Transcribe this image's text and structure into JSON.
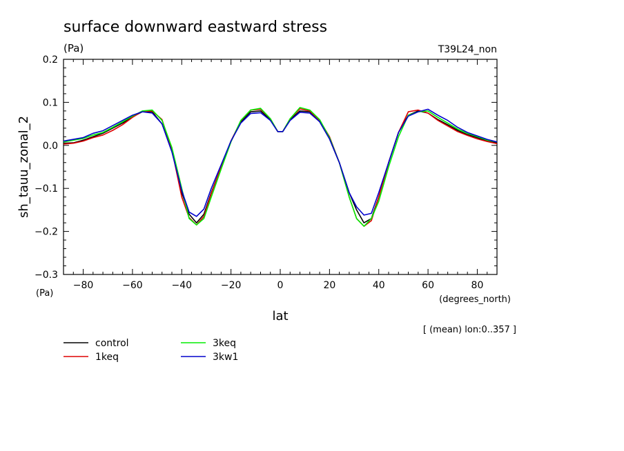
{
  "chart_data": {
    "type": "line",
    "title": "surface downward eastward stress",
    "yunit_top": "(Pa)",
    "yunit_bottom": "(Pa)",
    "top_right_label": "T39L24_non",
    "ylabel": "sh_tauu_zonal_2",
    "xlabel": "lat",
    "xunit": "(degrees_north)",
    "note": "[ (mean) lon:0..357 ]",
    "xlim": [
      -88,
      88
    ],
    "ylim": [
      -0.3,
      0.2
    ],
    "x_ticks": [
      -80,
      -60,
      -40,
      -20,
      0,
      20,
      40,
      60,
      80
    ],
    "x_tick_labels": [
      "−80",
      "−60",
      "−40",
      "−20",
      "0",
      "20",
      "40",
      "60",
      "80"
    ],
    "y_ticks": [
      -0.3,
      -0.2,
      -0.1,
      0.0,
      0.1,
      0.2
    ],
    "y_tick_labels": [
      "−0.3",
      "−0.2",
      "−0.1",
      "0.0",
      "0.1",
      "0.2"
    ],
    "x": [
      -88,
      -84,
      -80,
      -76,
      -72,
      -68,
      -64,
      -60,
      -56,
      -52,
      -48,
      -44,
      -40,
      -37,
      -34,
      -31,
      -28,
      -24,
      -20,
      -16,
      -12,
      -8,
      -4,
      -1,
      1,
      4,
      8,
      12,
      16,
      20,
      24,
      28,
      31,
      34,
      37,
      40,
      44,
      48,
      52,
      56,
      60,
      64,
      68,
      72,
      76,
      80,
      84,
      88
    ],
    "series": [
      {
        "name": "control",
        "color": "#000000",
        "values": [
          0.005,
          0.006,
          0.012,
          0.02,
          0.028,
          0.04,
          0.052,
          0.066,
          0.078,
          0.078,
          0.05,
          -0.01,
          -0.11,
          -0.16,
          -0.18,
          -0.16,
          -0.11,
          -0.05,
          0.01,
          0.055,
          0.078,
          0.08,
          0.06,
          0.032,
          0.032,
          0.06,
          0.08,
          0.078,
          0.055,
          0.015,
          -0.04,
          -0.11,
          -0.15,
          -0.18,
          -0.17,
          -0.12,
          -0.04,
          0.03,
          0.07,
          0.08,
          0.075,
          0.06,
          0.048,
          0.035,
          0.025,
          0.018,
          0.01,
          0.006
        ]
      },
      {
        "name": "1keq",
        "color": "#dd0000",
        "values": [
          0.003,
          0.005,
          0.01,
          0.018,
          0.024,
          0.035,
          0.048,
          0.065,
          0.079,
          0.08,
          0.06,
          -0.01,
          -0.12,
          -0.168,
          -0.185,
          -0.165,
          -0.112,
          -0.05,
          0.01,
          0.057,
          0.082,
          0.084,
          0.062,
          0.032,
          0.032,
          0.062,
          0.085,
          0.08,
          0.058,
          0.02,
          -0.04,
          -0.12,
          -0.17,
          -0.188,
          -0.175,
          -0.12,
          -0.04,
          0.03,
          0.078,
          0.082,
          0.075,
          0.058,
          0.045,
          0.032,
          0.023,
          0.015,
          0.009,
          0.004
        ]
      },
      {
        "name": "3keq",
        "color": "#00ee00",
        "values": [
          0.008,
          0.012,
          0.016,
          0.024,
          0.03,
          0.042,
          0.055,
          0.068,
          0.08,
          0.082,
          0.058,
          -0.005,
          -0.1,
          -0.17,
          -0.185,
          -0.17,
          -0.12,
          -0.055,
          0.008,
          0.058,
          0.082,
          0.086,
          0.062,
          0.032,
          0.032,
          0.062,
          0.088,
          0.082,
          0.06,
          0.018,
          -0.04,
          -0.12,
          -0.17,
          -0.188,
          -0.17,
          -0.13,
          -0.05,
          0.02,
          0.07,
          0.078,
          0.08,
          0.065,
          0.052,
          0.038,
          0.028,
          0.02,
          0.012,
          0.008
        ]
      },
      {
        "name": "3kw1",
        "color": "#0000cc",
        "values": [
          0.01,
          0.014,
          0.018,
          0.028,
          0.034,
          0.046,
          0.058,
          0.07,
          0.078,
          0.075,
          0.05,
          -0.015,
          -0.105,
          -0.155,
          -0.165,
          -0.148,
          -0.1,
          -0.045,
          0.01,
          0.052,
          0.074,
          0.076,
          0.058,
          0.032,
          0.032,
          0.058,
          0.077,
          0.075,
          0.055,
          0.015,
          -0.04,
          -0.11,
          -0.143,
          -0.162,
          -0.158,
          -0.11,
          -0.04,
          0.03,
          0.068,
          0.078,
          0.084,
          0.07,
          0.058,
          0.042,
          0.03,
          0.022,
          0.014,
          0.008
        ]
      }
    ],
    "legend_placement": "bottom-left"
  }
}
